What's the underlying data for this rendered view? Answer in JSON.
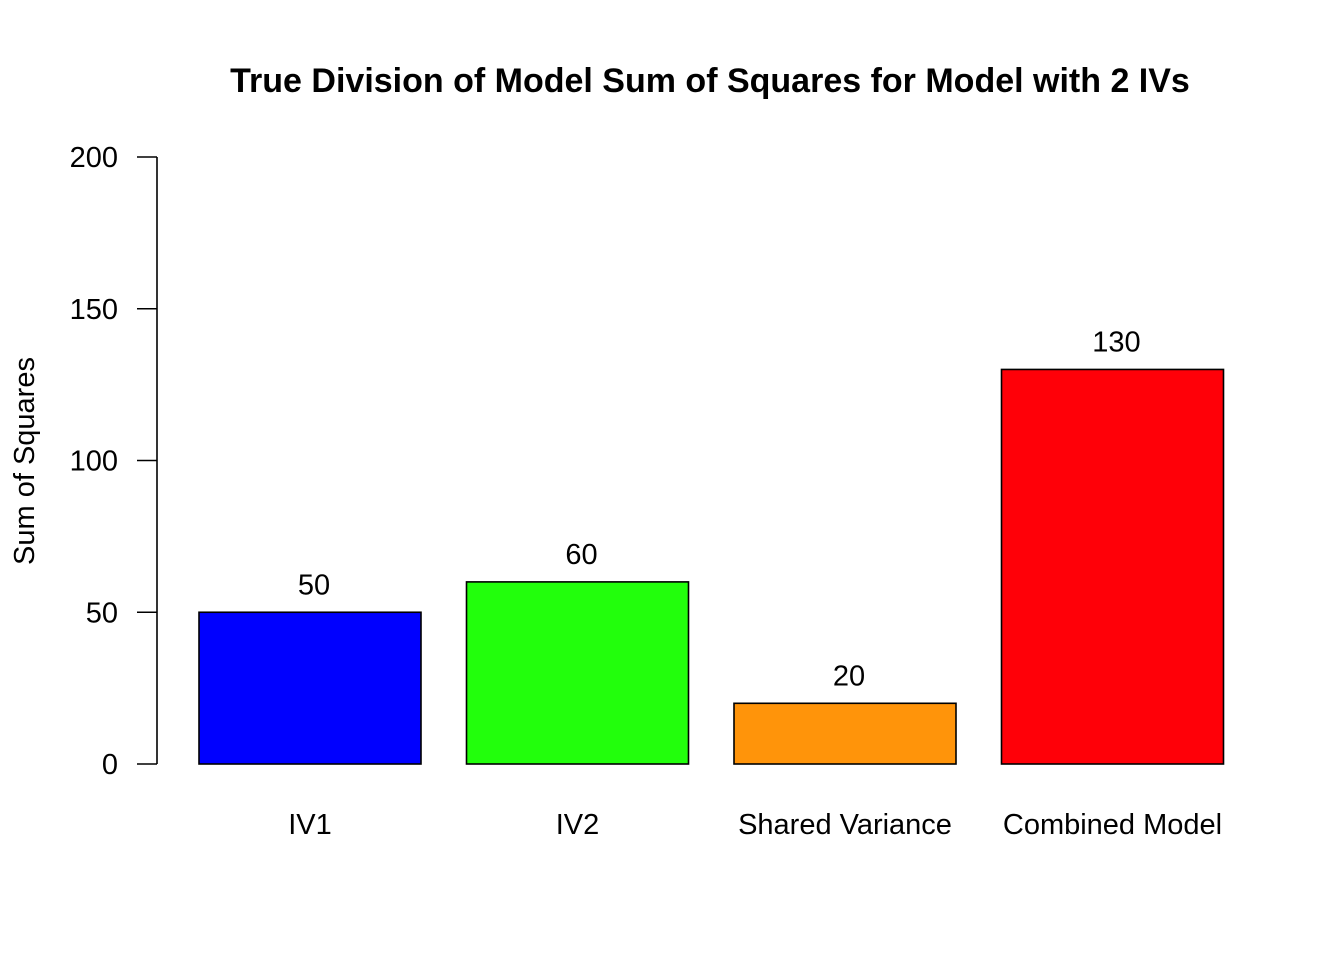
{
  "chart_data": {
    "type": "bar",
    "title": "True Division of Model Sum of Squares for Model with 2 IVs",
    "xlabel": "",
    "ylabel": "Sum of Squares",
    "categories": [
      "IV1",
      "IV2",
      "Shared Variance",
      "Combined Model"
    ],
    "values": [
      50,
      60,
      20,
      130
    ],
    "data_labels": [
      "50",
      "60",
      "20",
      "130"
    ],
    "colors": [
      "#0000ff",
      "#22ff0c",
      "#ff940a",
      "#ff0008"
    ],
    "bar_border_color": "#000000",
    "ylim": [
      0,
      200
    ],
    "yticks": [
      0,
      50,
      100,
      150,
      200
    ],
    "ytick_labels": [
      "0",
      "50",
      "100",
      "150",
      "200"
    ],
    "grid": false,
    "legend": "none"
  }
}
